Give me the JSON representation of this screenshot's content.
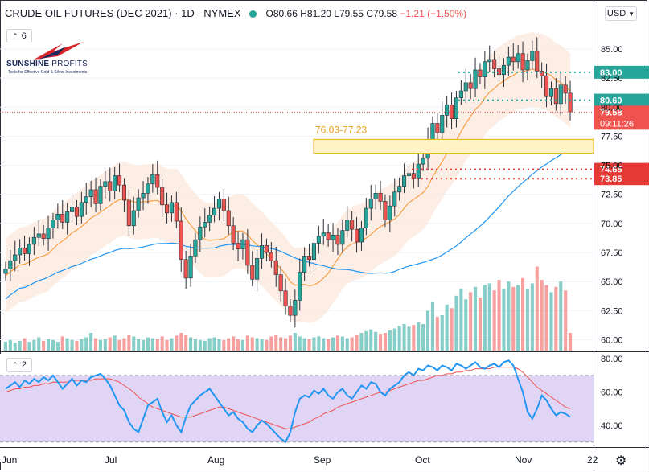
{
  "header": {
    "title": "CRUDE OIL FUTURES (DEC 2021) · 1D · NYMEX",
    "ohlc_open": "O80.66",
    "ohlc_high": "H81.20",
    "ohlc_low": "L79.55",
    "ohlc_close": "C79.58",
    "change": "−1.21 (−1.50%)",
    "currency": "USD",
    "indicator_count": "6",
    "rsi_count": "2"
  },
  "logo": {
    "name_bold": "SUNSHINE",
    "name_rest": "PROFITS",
    "tagline": "Tools for Effective Gold & Silver Investments"
  },
  "colors": {
    "up": "#26a69a",
    "down": "#ef5350",
    "sma_blue": "#2196f3",
    "ema_orange": "#f7a046",
    "rsi_line": "#2196f3",
    "rsi_ma": "#ef5350",
    "rsi_band": "#e1d5f5",
    "target_green": "#26a69a",
    "support_red": "#e53935",
    "gap_zone": "#fff3c4"
  },
  "chart_data": [
    {
      "type": "candlestick",
      "y_ticks": [
        "85.00",
        "82.50",
        "80.00",
        "77.50",
        "75.00",
        "72.50",
        "70.00",
        "67.50",
        "65.00",
        "62.50",
        "60.00"
      ],
      "ylim": [
        59.0,
        87.0
      ],
      "x_ticks": [
        "Jun",
        "Jul",
        "Aug",
        "Sep",
        "Oct",
        "Nov",
        "22"
      ],
      "annotations": {
        "zone_label": "76.03-77.23",
        "zone": [
          76.03,
          77.23
        ],
        "levels": [
          {
            "label": "83.00",
            "value": 83.0,
            "kind": "target"
          },
          {
            "label": "80.60",
            "value": 80.6,
            "kind": "target"
          },
          {
            "label": "74.65",
            "value": 74.65,
            "kind": "support"
          },
          {
            "label": "73.85",
            "value": 73.85,
            "kind": "support"
          }
        ],
        "last_price": "79.58",
        "countdown": "09:11:26"
      },
      "closes": [
        66.1,
        66.8,
        67.3,
        67.9,
        67.4,
        68.2,
        68.8,
        69.1,
        68.7,
        69.6,
        70.3,
        70.8,
        70.1,
        71.0,
        71.4,
        70.6,
        71.8,
        72.3,
        72.9,
        71.7,
        73.2,
        73.6,
        72.8,
        74.1,
        73.3,
        72.0,
        69.8,
        71.1,
        72.2,
        72.6,
        73.4,
        74.2,
        73.1,
        71.6,
        70.9,
        71.8,
        70.2,
        66.9,
        65.3,
        67.2,
        68.6,
        69.7,
        70.1,
        70.7,
        71.3,
        72.1,
        71.1,
        69.8,
        68.3,
        67.8,
        68.6,
        66.4,
        65.2,
        67.0,
        68.1,
        67.5,
        66.8,
        65.6,
        64.2,
        62.9,
        62.1,
        63.4,
        65.8,
        67.2,
        66.9,
        68.3,
        68.9,
        69.2,
        68.6,
        69.0,
        68.2,
        69.4,
        70.3,
        69.5,
        68.4,
        69.6,
        71.3,
        72.1,
        72.6,
        71.9,
        70.3,
        71.5,
        72.7,
        73.2,
        74.1,
        74.3,
        73.9,
        75.1,
        75.6,
        77.2,
        78.6,
        77.8,
        79.3,
        80.2,
        79.0,
        80.8,
        81.4,
        82.1,
        81.6,
        83.2,
        82.6,
        83.9,
        84.1,
        83.3,
        82.8,
        83.6,
        84.3,
        83.9,
        84.6,
        83.2,
        84.0,
        84.8,
        83.1,
        82.7,
        80.9,
        81.6,
        80.3,
        81.9,
        81.2,
        79.6
      ],
      "rsi": {
        "y_ticks": [
          "80.00",
          "60.00",
          "40.00"
        ],
        "ylim": [
          27,
          83
        ],
        "upper": 70,
        "lower": 30,
        "values": [
          62,
          64,
          66,
          63,
          67,
          65,
          68,
          66,
          69,
          67,
          70,
          66,
          62,
          65,
          68,
          64,
          67,
          66,
          69,
          70,
          71,
          68,
          64,
          58,
          52,
          49,
          42,
          38,
          36,
          44,
          52,
          54,
          56,
          48,
          42,
          46,
          40,
          36,
          45,
          52,
          55,
          58,
          60,
          62,
          58,
          54,
          50,
          46,
          48,
          44,
          42,
          38,
          36,
          40,
          43,
          41,
          38,
          35,
          32,
          30,
          36,
          48,
          56,
          58,
          57,
          61,
          59,
          62,
          58,
          56,
          60,
          62,
          58,
          56,
          60,
          64,
          62,
          66,
          65,
          60,
          58,
          62,
          64,
          66,
          70,
          72,
          70,
          74,
          73,
          76,
          75,
          73,
          76,
          75,
          73,
          77,
          76,
          74,
          76,
          78,
          75,
          74,
          76,
          77,
          75,
          78,
          79,
          76,
          68,
          60,
          48,
          44,
          50,
          58,
          55,
          50,
          46,
          48,
          47,
          45
        ],
        "ma": [
          60,
          61,
          62,
          62,
          63,
          63,
          64,
          64,
          65,
          65,
          66,
          66,
          66,
          66,
          67,
          67,
          67,
          67,
          67,
          68,
          68,
          68,
          68,
          67,
          66,
          64,
          62,
          60,
          57,
          55,
          53,
          51,
          50,
          49,
          48,
          47,
          46,
          45,
          45,
          45,
          46,
          47,
          48,
          49,
          50,
          51,
          51,
          50,
          49,
          48,
          47,
          46,
          45,
          44,
          43,
          42,
          41,
          40,
          39,
          38,
          38,
          39,
          40,
          41,
          42,
          44,
          45,
          47,
          48,
          49,
          51,
          52,
          53,
          54,
          55,
          56,
          57,
          58,
          59,
          60,
          60,
          61,
          62,
          63,
          64,
          65,
          66,
          67,
          67,
          68,
          69,
          70,
          70,
          71,
          71,
          72,
          72,
          73,
          73,
          74,
          74,
          74,
          74,
          75,
          75,
          75,
          75,
          75,
          74,
          72,
          69,
          66,
          63,
          61,
          59,
          57,
          55,
          53,
          51,
          50
        ]
      },
      "volume_relative": [
        0.1,
        0.12,
        0.09,
        0.11,
        0.14,
        0.1,
        0.12,
        0.15,
        0.11,
        0.13,
        0.12,
        0.1,
        0.16,
        0.14,
        0.12,
        0.11,
        0.13,
        0.15,
        0.2,
        0.14,
        0.12,
        0.13,
        0.15,
        0.17,
        0.12,
        0.14,
        0.18,
        0.16,
        0.13,
        0.12,
        0.15,
        0.14,
        0.13,
        0.16,
        0.12,
        0.14,
        0.17,
        0.2,
        0.18,
        0.15,
        0.13,
        0.12,
        0.11,
        0.14,
        0.15,
        0.13,
        0.12,
        0.14,
        0.16,
        0.13,
        0.12,
        0.17,
        0.15,
        0.14,
        0.13,
        0.12,
        0.16,
        0.18,
        0.15,
        0.14,
        0.17,
        0.2,
        0.16,
        0.14,
        0.13,
        0.15,
        0.16,
        0.14,
        0.13,
        0.15,
        0.17,
        0.16,
        0.14,
        0.15,
        0.18,
        0.2,
        0.22,
        0.24,
        0.21,
        0.19,
        0.2,
        0.23,
        0.25,
        0.28,
        0.3,
        0.27,
        0.29,
        0.32,
        0.3,
        0.45,
        0.55,
        0.38,
        0.4,
        0.52,
        0.48,
        0.62,
        0.7,
        0.58,
        0.66,
        0.72,
        0.6,
        0.74,
        0.76,
        0.68,
        0.8,
        0.7,
        0.78,
        0.72,
        0.74,
        0.82,
        0.7,
        0.76,
        0.95,
        0.8,
        0.74,
        0.66,
        0.72,
        0.78,
        0.68,
        0.2
      ]
    }
  ]
}
